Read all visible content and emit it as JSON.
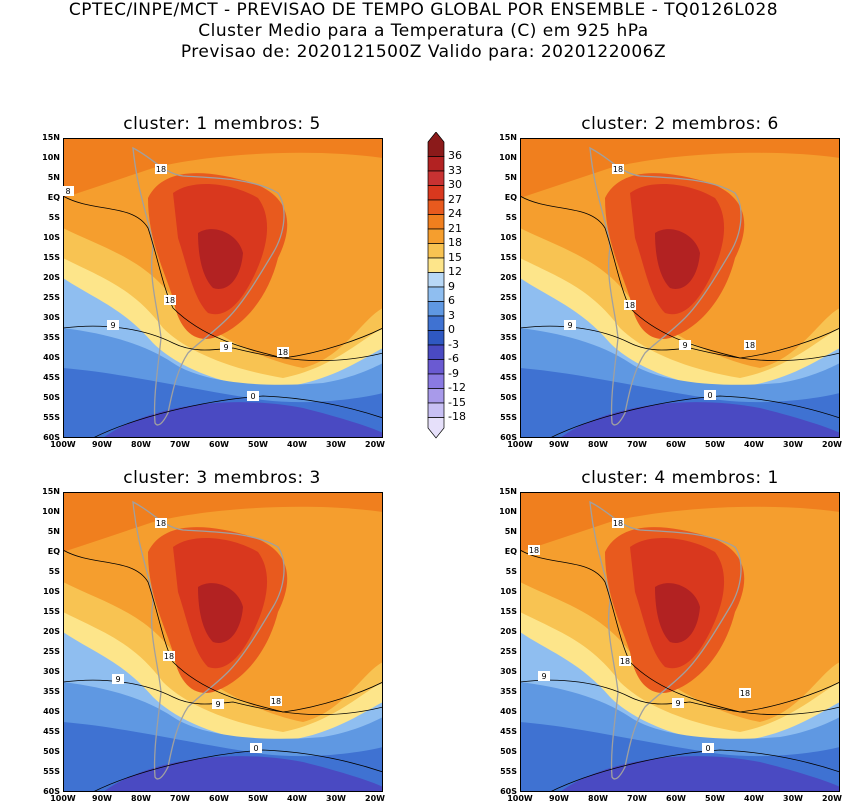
{
  "header": {
    "line1": "CPTEC/INPE/MCT - PREVISAO DE TEMPO GLOBAL POR ENSEMBLE - TQ0126L028",
    "line2": "Cluster Medio para a Temperatura (C) em 925 hPa",
    "line3": "Previsao de: 2020121500Z   Valido para: 2020122006Z"
  },
  "panels": [
    {
      "title": "cluster: 1   membros: 5",
      "labels": [
        "18",
        "8",
        "18",
        "9",
        "9",
        "18",
        "0"
      ]
    },
    {
      "title": "cluster: 2   membros: 6",
      "labels": [
        "18",
        "18",
        "9",
        "9",
        "18",
        "0"
      ]
    },
    {
      "title": "cluster: 3   membros: 3",
      "labels": [
        "18",
        "18",
        "9",
        "9",
        "18",
        "0"
      ]
    },
    {
      "title": "cluster: 4   membros: 1",
      "labels": [
        "18",
        "18",
        "18",
        "9",
        "9",
        "18",
        "0"
      ]
    }
  ],
  "lat_labels": [
    "15N",
    "10N",
    "5N",
    "EQ",
    "5S",
    "10S",
    "15S",
    "20S",
    "25S",
    "30S",
    "35S",
    "40S",
    "45S",
    "50S",
    "55S",
    "60S"
  ],
  "lon_labels": [
    "100W",
    "90W",
    "80W",
    "70W",
    "60W",
    "50W",
    "40W",
    "30W",
    "20W"
  ],
  "colorbar": {
    "labels": [
      "36",
      "33",
      "30",
      "27",
      "24",
      "21",
      "18",
      "15",
      "12",
      "9",
      "6",
      "3",
      "0",
      "-3",
      "-6",
      "-9",
      "-12",
      "-15",
      "-18"
    ],
    "colors": [
      "#8b1a1a",
      "#b22222",
      "#c83232",
      "#d9381e",
      "#e85a1e",
      "#f07f1e",
      "#f59e2e",
      "#f8c352",
      "#fde58a",
      "#b8d8f6",
      "#8fbef0",
      "#5f98e2",
      "#3f72d2",
      "#2f58c2",
      "#4a4ac2",
      "#6a5ad2",
      "#8a7ae2",
      "#a89aea",
      "#c8c0f4",
      "#e6e0fa"
    ]
  }
}
